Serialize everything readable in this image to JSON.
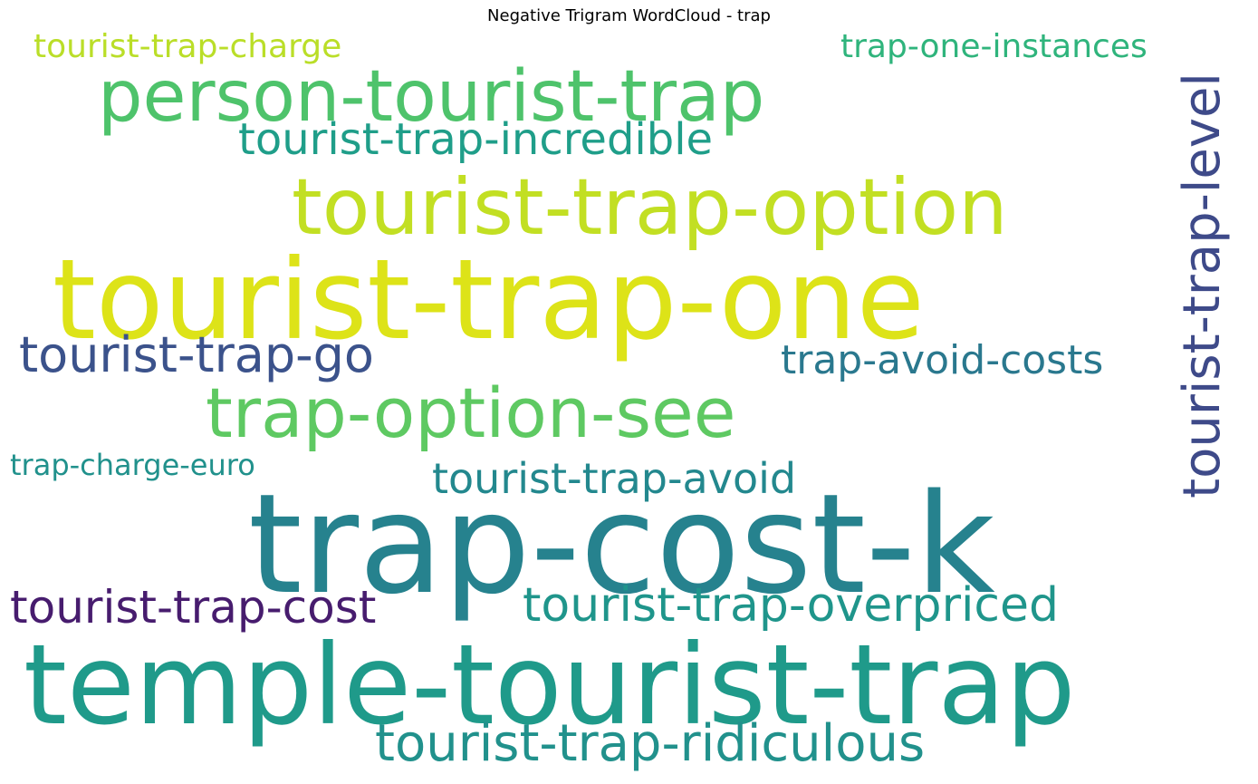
{
  "title": "Negative Trigram WordCloud - trap",
  "words": [
    {
      "text": "tourist-trap-charge",
      "color": "#bade28"
    },
    {
      "text": "trap-one-instances",
      "color": "#2fb47c"
    },
    {
      "text": "person-tourist-trap",
      "color": "#4ec36b"
    },
    {
      "text": "tourist-trap-incredible",
      "color": "#1f9e89"
    },
    {
      "text": "tourist-trap-option",
      "color": "#c2df23"
    },
    {
      "text": "tourist-trap-level",
      "color": "#3e4a89"
    },
    {
      "text": "tourist-trap-one",
      "color": "#dde318"
    },
    {
      "text": "tourist-trap-go",
      "color": "#3b528b"
    },
    {
      "text": "trap-avoid-costs",
      "color": "#2a788e"
    },
    {
      "text": "trap-option-see",
      "color": "#5ec962"
    },
    {
      "text": "trap-charge-euro",
      "color": "#21918c"
    },
    {
      "text": "tourist-trap-avoid",
      "color": "#23888e"
    },
    {
      "text": "trap-cost-k",
      "color": "#26828e"
    },
    {
      "text": "tourist-trap-cost",
      "color": "#471c6e"
    },
    {
      "text": "tourist-trap-overpriced",
      "color": "#1f958b"
    },
    {
      "text": "temple-tourist-trap",
      "color": "#1f9a8a"
    },
    {
      "text": "tourist-trap-ridiculous",
      "color": "#21918c"
    }
  ]
}
